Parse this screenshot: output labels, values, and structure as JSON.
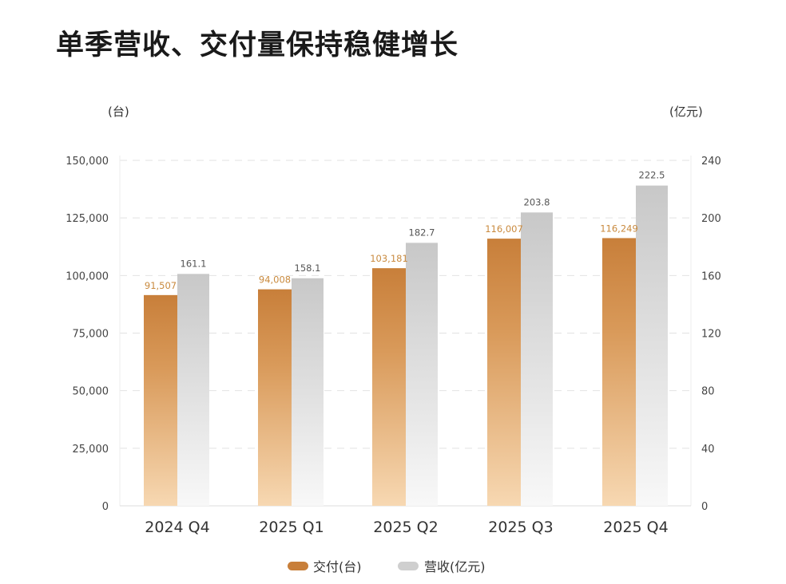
{
  "title": "单季营收、交付量保持稳健增长",
  "chart_data": {
    "type": "bar",
    "title": "单季营收、交付量保持稳健增长",
    "categories": [
      "2024 Q4",
      "2025 Q1",
      "2025 Q2",
      "2025 Q3",
      "2025 Q4"
    ],
    "series": [
      {
        "name": "交付(台)",
        "axis": "left",
        "color": "#c87f3a",
        "values": [
          91507,
          94008,
          103181,
          116007,
          116249
        ],
        "labels": [
          "91,507",
          "94,008",
          "103,181",
          "116,007",
          "116,249"
        ]
      },
      {
        "name": "营收(亿元)",
        "axis": "right",
        "color": "#c9c9c9",
        "values": [
          161.1,
          158.1,
          182.7,
          203.8,
          222.5
        ],
        "labels": [
          "161.1",
          "158.1",
          "182.7",
          "203.8",
          "222.5"
        ]
      }
    ],
    "y_left": {
      "unit": "(台)",
      "ylim": [
        0,
        150000
      ],
      "ticks": [
        "0",
        "25,000",
        "50,000",
        "75,000",
        "100,000",
        "125,000",
        "150,000"
      ]
    },
    "y_right": {
      "unit": "(亿元)",
      "ylim": [
        0,
        240
      ],
      "ticks": [
        "0",
        "40",
        "80",
        "120",
        "160",
        "200",
        "240"
      ]
    },
    "grid": true,
    "legend": "bottom"
  }
}
